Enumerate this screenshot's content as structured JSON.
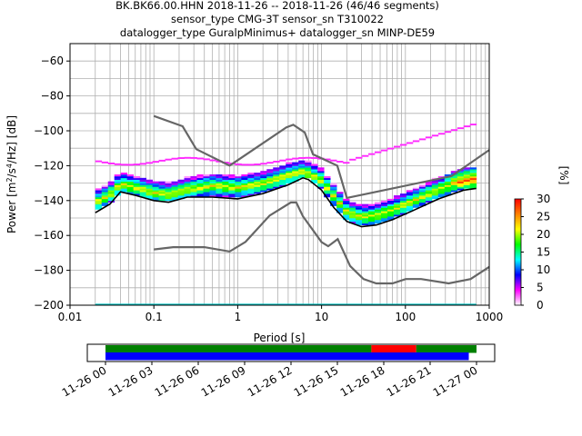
{
  "title": {
    "line1": "BK.BK66.00.HHN   2018-11-26 -- 2018-11-26  (46/46 segments)",
    "line2": "sensor_type CMG-3T sensor_sn T310022",
    "line3": "datalogger_type GuralpMinimus+ datalogger_sn MINP-DE59"
  },
  "chart_data": [
    {
      "type": "heatmap",
      "title": "BK.BK66.00.HHN   2018-11-26 -- 2018-11-26  (46/46 segments)",
      "xlabel": "Period [s]",
      "ylabel": "Power [m^2/s^4/Hz] [dB]",
      "xscale": "log",
      "xlim": [
        0.01,
        1000
      ],
      "ylim": [
        -200,
        -50
      ],
      "x_ticks": [
        "0.01",
        "0.1",
        "1",
        "10",
        "100",
        "1000"
      ],
      "y_ticks": [
        "−200",
        "−180",
        "−160",
        "−140",
        "−120",
        "−100",
        "−80",
        "−60"
      ],
      "grid": true,
      "colorbar": {
        "label": "[%]",
        "range": [
          0,
          30
        ],
        "ticks": [
          "0",
          "5",
          "10",
          "15",
          "20",
          "25",
          "30"
        ]
      },
      "noise_model_high": {
        "period": [
          0.1,
          0.22,
          0.32,
          0.8,
          3.8,
          4.6,
          6.3,
          7.9,
          15.4,
          20,
          354.8,
          1000
        ],
        "power": [
          -91.5,
          -97.4,
          -110.5,
          -120,
          -98,
          -96.5,
          -101,
          -113.5,
          -120,
          -138.5,
          -126,
          -111
        ]
      },
      "noise_model_low": {
        "period": [
          0.1,
          0.17,
          0.4,
          0.8,
          1.24,
          2.4,
          4.3,
          5,
          6,
          10,
          12,
          15.6,
          21.9,
          31.6,
          45,
          70,
          101,
          154,
          328,
          600,
          1000
        ],
        "power": [
          -168,
          -166.7,
          -166.7,
          -169.2,
          -163.7,
          -148.6,
          -141.1,
          -141.1,
          -149,
          -163.8,
          -166.2,
          -162.1,
          -177.5,
          -185,
          -187.5,
          -187.5,
          -185,
          -185,
          -187.5,
          -185,
          -178
        ]
      },
      "mode_curve": {
        "period": [
          0.02,
          0.03,
          0.04,
          0.06,
          0.1,
          0.15,
          0.25,
          0.5,
          1,
          2,
          4,
          6,
          7,
          10,
          14,
          20,
          30,
          45,
          70,
          120,
          250,
          500,
          700
        ],
        "power": [
          -144,
          -139,
          -133,
          -135,
          -138,
          -139,
          -136,
          -134,
          -135,
          -133,
          -128,
          -126,
          -127,
          -131,
          -140,
          -149,
          -152,
          -151,
          -148,
          -143,
          -136,
          -131,
          -130
        ]
      },
      "min_curve": {
        "period": [
          0.02,
          0.03,
          0.04,
          0.06,
          0.1,
          0.15,
          0.25,
          0.5,
          1,
          2,
          4,
          6,
          7,
          10,
          14,
          20,
          30,
          45,
          70,
          120,
          250,
          500,
          700
        ],
        "power": [
          -147,
          -142,
          -135,
          -137,
          -140,
          -141,
          -138,
          -138,
          -139,
          -136,
          -131,
          -127,
          -128,
          -134,
          -144,
          -152,
          -155,
          -154,
          -151,
          -146,
          -139,
          -134,
          -133
        ]
      }
    },
    {
      "type": "bar",
      "title": "",
      "xlabel": "",
      "x_ticks": [
        "11-26 00",
        "11-26 03",
        "11-26 06",
        "11-26 09",
        "11-26 12",
        "11-26 15",
        "11-26 18",
        "11-26 21",
        "11-27 00"
      ],
      "bands": [
        {
          "name": "",
          "color": "#008000",
          "start_hour": 0,
          "end_hour": 17.2
        },
        {
          "name": "",
          "color": "#ff0000",
          "start_hour": 17.2,
          "end_hour": 20.1
        },
        {
          "name": "",
          "color": "#008000",
          "start_hour": 20.1,
          "end_hour": 24.0
        },
        {
          "name": "",
          "color": "#0000ff",
          "start_hour": 0,
          "end_hour": 23.5
        }
      ]
    }
  ],
  "colors": {
    "noise_model": "#666666",
    "mode_curve": "#000000",
    "cmap": [
      "#ffffff",
      "#ff00ff",
      "#0000ff",
      "#00ffff",
      "#00ff00",
      "#ffff00",
      "#ff8000",
      "#ff0000"
    ]
  }
}
